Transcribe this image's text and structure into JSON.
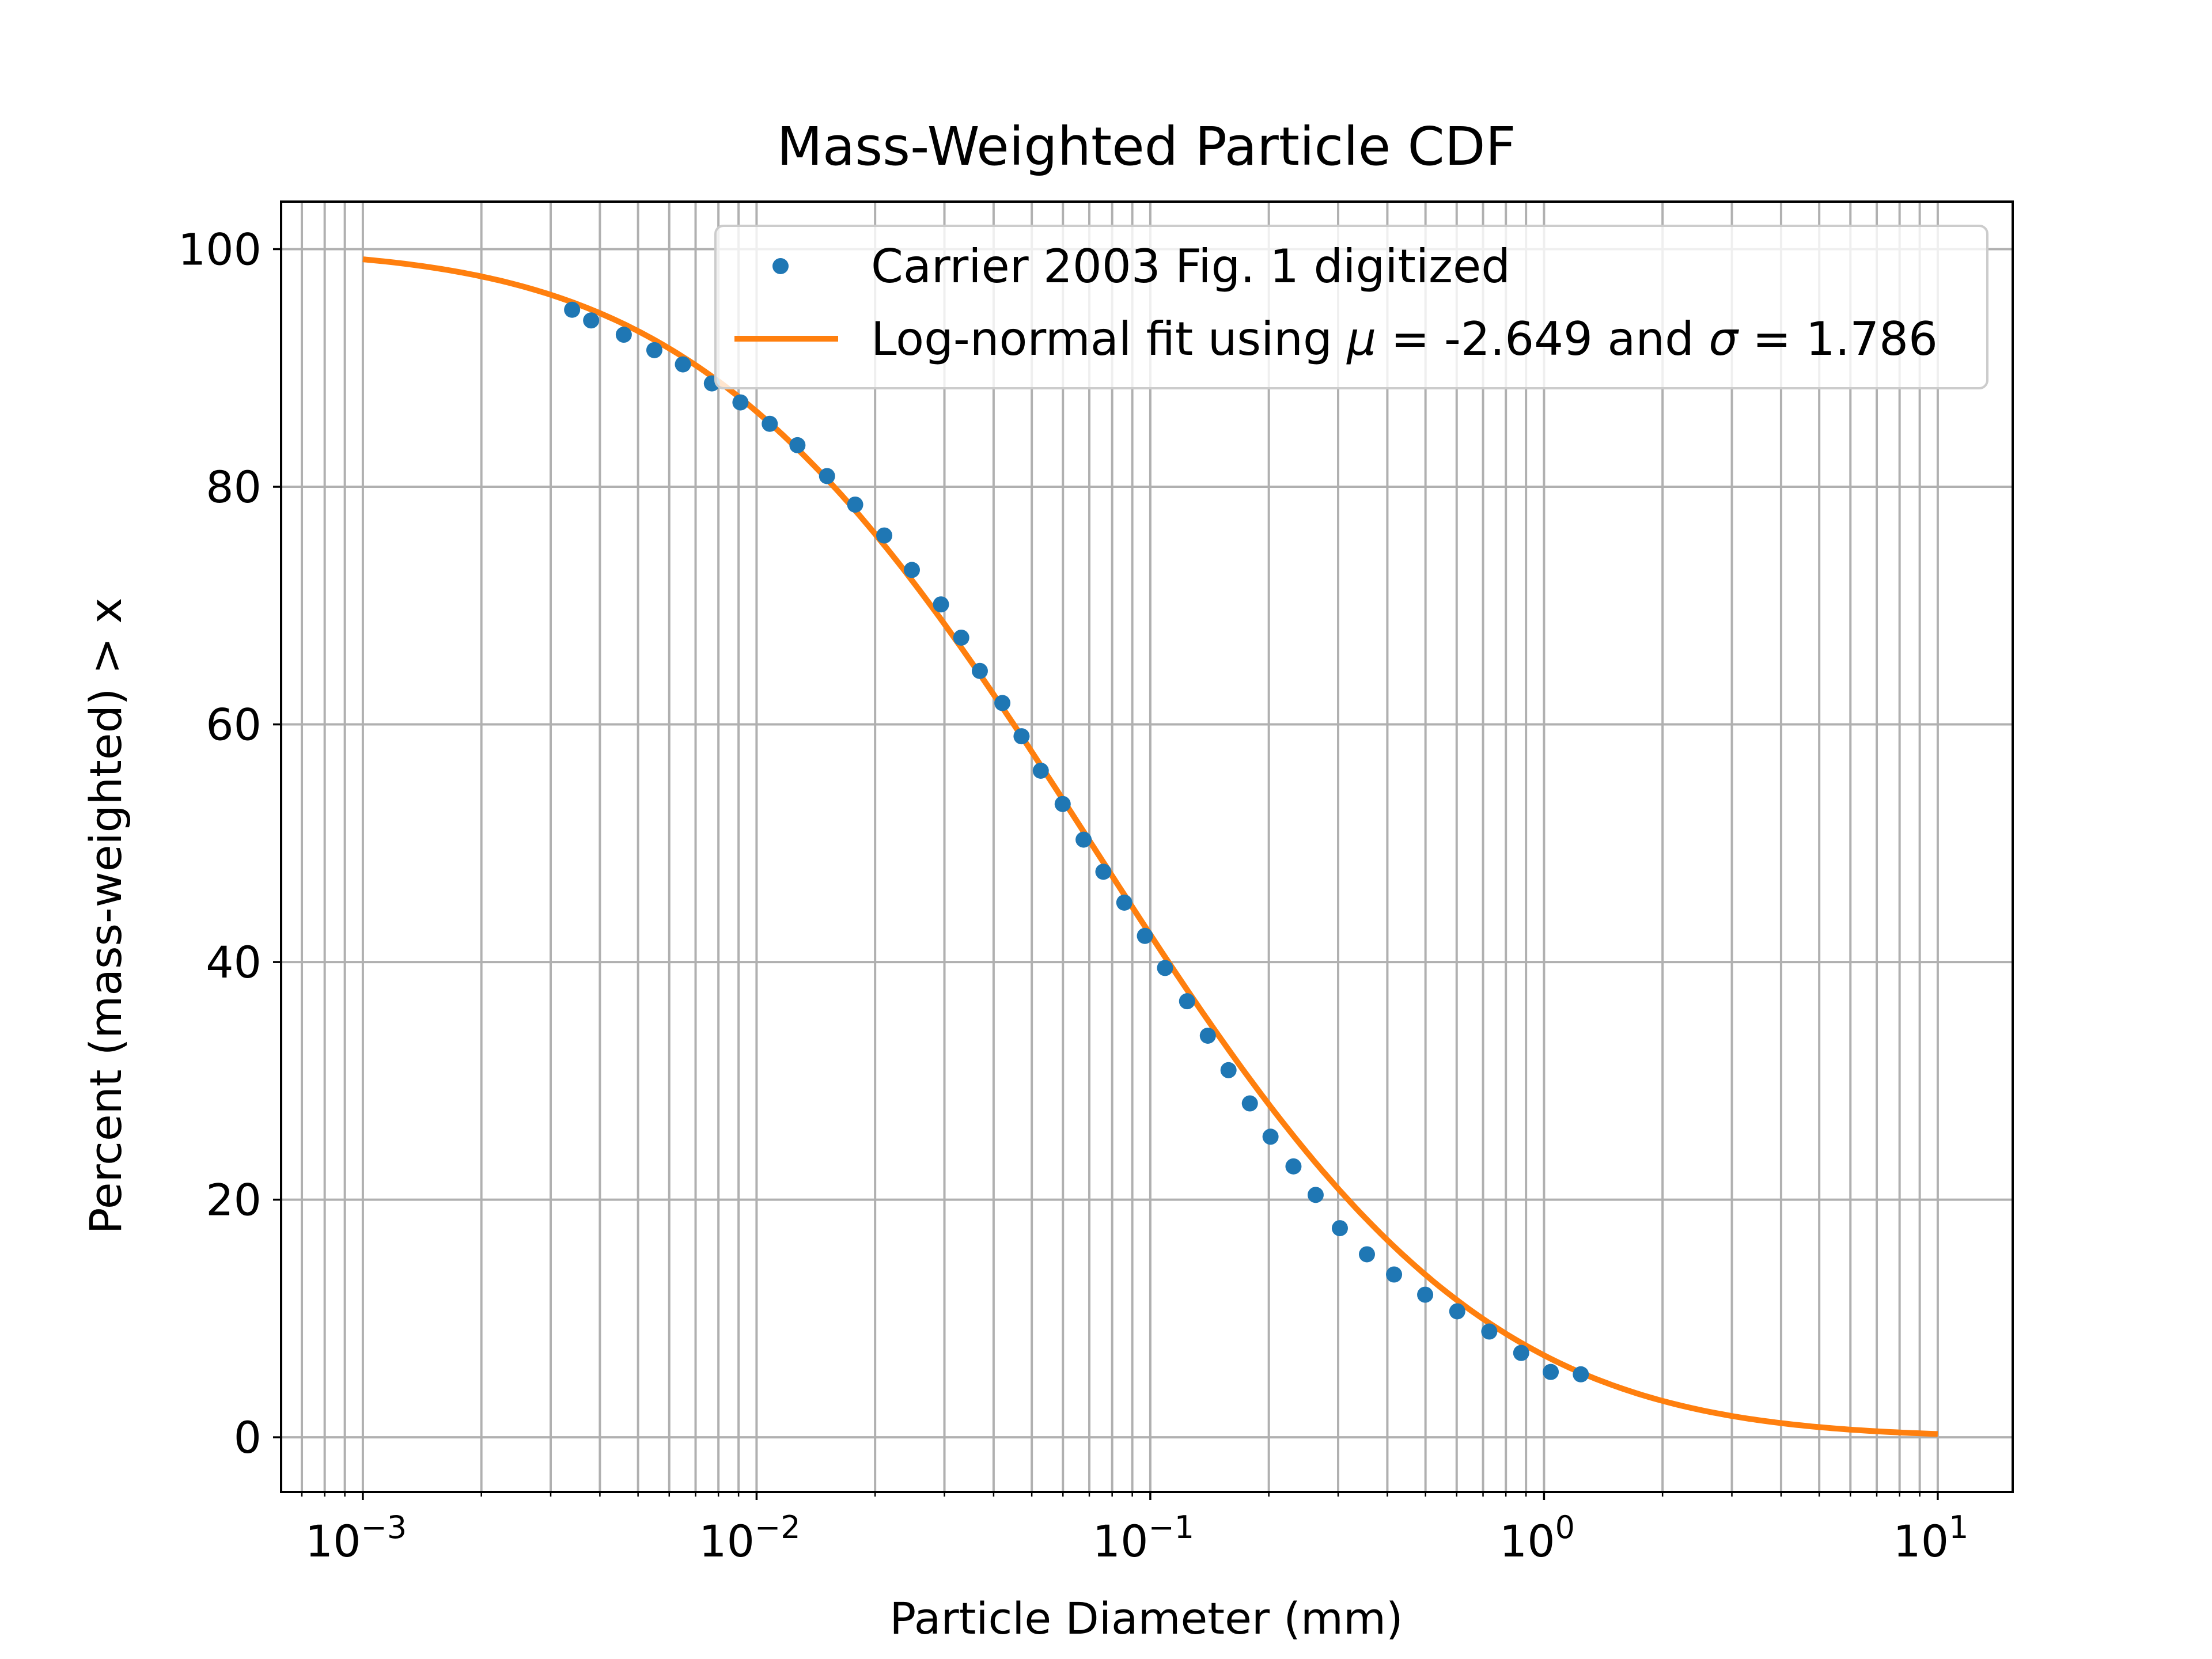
{
  "chart_data": {
    "type": "line",
    "title": "Mass-Weighted Particle CDF",
    "xlabel": "Particle Diameter (mm)",
    "ylabel": "Percent (mass-weighted) > x",
    "xscale": "log",
    "xlim": [
      0.00062,
      15.5
    ],
    "ylim": [
      -4.6,
      104
    ],
    "grid": "on (major and minor x lines, major y lines)",
    "legend_placement": "top-right",
    "x_ticks": [
      {
        "value": 0.001,
        "base": "10",
        "exp": "−3"
      },
      {
        "value": 0.01,
        "base": "10",
        "exp": "−2"
      },
      {
        "value": 0.1,
        "base": "10",
        "exp": "−1"
      },
      {
        "value": 1,
        "base": "10",
        "exp": "0"
      },
      {
        "value": 10,
        "base": "10",
        "exp": "1"
      }
    ],
    "y_ticks": [
      0,
      20,
      40,
      60,
      80,
      100
    ],
    "y_tick_labels": [
      "0",
      "20",
      "40",
      "60",
      "80",
      "100"
    ],
    "series": [
      {
        "name": "Carrier 2003 Fig. 1 digitized",
        "kind": "scatter",
        "color": "#1f77b4",
        "x": [
          0.0034,
          0.0038,
          0.0046,
          0.0055,
          0.0065,
          0.0077,
          0.0091,
          0.0108,
          0.0127,
          0.0151,
          0.0178,
          0.0211,
          0.0248,
          0.0294,
          0.0331,
          0.0369,
          0.0421,
          0.0471,
          0.0527,
          0.0599,
          0.0677,
          0.076,
          0.0859,
          0.0969,
          0.109,
          0.124,
          0.14,
          0.158,
          0.179,
          0.202,
          0.231,
          0.263,
          0.303,
          0.355,
          0.416,
          0.499,
          0.602,
          0.726,
          0.875,
          1.04,
          1.24
        ],
        "y": [
          94.9,
          94.0,
          92.8,
          91.5,
          90.3,
          88.7,
          87.1,
          85.3,
          83.5,
          80.9,
          78.5,
          75.9,
          73.0,
          70.1,
          67.3,
          64.5,
          61.8,
          59.0,
          56.1,
          53.3,
          50.3,
          47.6,
          45.0,
          42.2,
          39.5,
          36.7,
          33.8,
          30.9,
          28.1,
          25.3,
          22.8,
          20.4,
          17.6,
          15.4,
          13.7,
          12.0,
          10.6,
          8.9,
          7.1,
          5.5,
          5.3
        ]
      },
      {
        "name": "Log-normal fit using μ = -2.649 and σ = 1.786",
        "kind": "line",
        "color": "#ff7f0e",
        "mu": -2.649,
        "sigma": 1.786,
        "x_range": [
          0.001,
          10
        ]
      }
    ],
    "legend": {
      "scatter_prefix": "Carrier 2003 Fig. 1 digitized",
      "fit_parts": [
        "Log-normal fit using ",
        "μ",
        " = -2.649 and ",
        "σ",
        " = 1.786"
      ]
    }
  }
}
